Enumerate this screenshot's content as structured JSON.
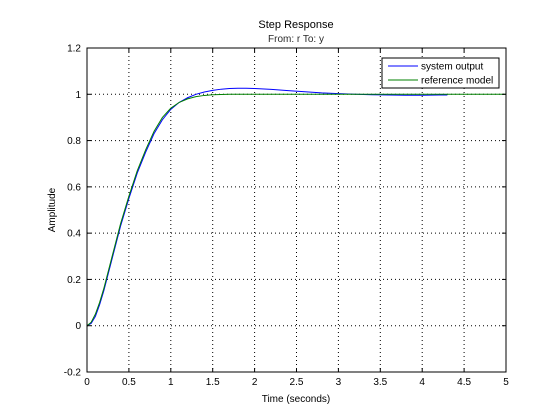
{
  "chart_data": {
    "type": "line",
    "title": "Step Response",
    "subtitle": "From: r  To: y",
    "xlabel": "Time (seconds)",
    "ylabel": "Amplitude",
    "xlim": [
      0,
      5
    ],
    "ylim": [
      -0.2,
      1.2
    ],
    "xticks": [
      0,
      0.5,
      1,
      1.5,
      2,
      2.5,
      3,
      3.5,
      4,
      4.5,
      5
    ],
    "yticks": [
      -0.2,
      0,
      0.2,
      0.4,
      0.6,
      0.8,
      1,
      1.2
    ],
    "xtick_labels": [
      "0",
      "0.5",
      "1",
      "1.5",
      "2",
      "2.5",
      "3",
      "3.5",
      "4",
      "4.5",
      "5"
    ],
    "ytick_labels": [
      "-0.2",
      "0",
      "0.2",
      "0.4",
      "0.6",
      "0.8",
      "1",
      "1.2"
    ],
    "grid": true,
    "legend_position": "top-right",
    "series": [
      {
        "name": "system output",
        "color": "#0000ff",
        "x": [
          0,
          0.05,
          0.1,
          0.15,
          0.2,
          0.3,
          0.4,
          0.5,
          0.6,
          0.7,
          0.8,
          0.9,
          1.0,
          1.1,
          1.2,
          1.3,
          1.4,
          1.5,
          1.6,
          1.7,
          1.8,
          1.9,
          2.0,
          2.2,
          2.4,
          2.6,
          2.8,
          3.0,
          3.2,
          3.4,
          3.6,
          3.8,
          4.0,
          4.2,
          4.3
        ],
        "y": [
          0,
          0.01,
          0.04,
          0.09,
          0.15,
          0.29,
          0.43,
          0.55,
          0.66,
          0.75,
          0.83,
          0.89,
          0.935,
          0.965,
          0.985,
          1.0,
          1.01,
          1.017,
          1.022,
          1.025,
          1.026,
          1.026,
          1.025,
          1.021,
          1.016,
          1.011,
          1.006,
          1.003,
          1.0,
          0.998,
          0.997,
          0.996,
          0.996,
          0.997,
          0.997
        ]
      },
      {
        "name": "reference model",
        "color": "#008000",
        "x": [
          0,
          0.05,
          0.1,
          0.15,
          0.2,
          0.3,
          0.4,
          0.5,
          0.6,
          0.7,
          0.8,
          0.9,
          1.0,
          1.1,
          1.2,
          1.3,
          1.4,
          1.5,
          1.6,
          1.7,
          1.8,
          1.9,
          2.0,
          2.5,
          3.0,
          3.5,
          4.0,
          4.5,
          5.0
        ],
        "y": [
          0,
          0.015,
          0.05,
          0.1,
          0.16,
          0.3,
          0.44,
          0.56,
          0.67,
          0.76,
          0.84,
          0.9,
          0.94,
          0.965,
          0.98,
          0.99,
          0.995,
          0.998,
          0.999,
          1.0,
          1.0,
          1.0,
          1.0,
          1.0,
          1.0,
          1.0,
          1.0,
          1.0,
          1.0
        ]
      }
    ]
  }
}
